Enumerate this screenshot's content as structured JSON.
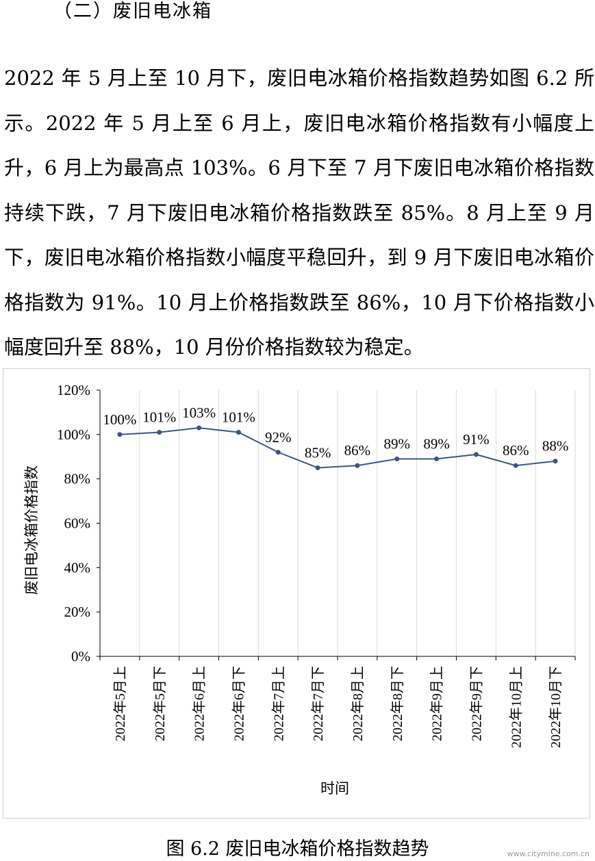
{
  "section_heading": "（二）废旧电冰箱",
  "paragraph": "2022 年 5 月上至 10 月下，废旧电冰箱价格指数趋势如图 6.2 所示。2022 年 5 月上至 6 月上，废旧电冰箱价格指数有小幅度上升，6 月上为最高点 103%。6 月下至 7 月下废旧电冰箱价格指数持续下跌，7 月下废旧电冰箱价格指数跌至 85%。8 月上至 9 月下，废旧电冰箱价格指数小幅度平稳回升，到 9 月下废旧电冰箱价格指数为 91%。10 月上价格指数跌至 86%，10 月下价格指数小幅度回升至 88%，10 月份价格指数较为稳定。",
  "caption": "图 6.2  废旧电冰箱价格指数趋势",
  "watermark": "www.citymine.com.cn",
  "chart_data": {
    "type": "line",
    "categories": [
      "2022年5月上",
      "2022年5月下",
      "2022年6月上",
      "2022年6月下",
      "2022年7月上",
      "2022年7月下",
      "2022年8月上",
      "2022年8月下",
      "2022年9月上",
      "2022年9月下",
      "2022年10月上",
      "2022年10月下"
    ],
    "values": [
      100,
      101,
      103,
      101,
      92,
      85,
      86,
      89,
      89,
      91,
      86,
      88
    ],
    "data_labels": [
      "100%",
      "101%",
      "103%",
      "101%",
      "92%",
      "85%",
      "86%",
      "89%",
      "89%",
      "91%",
      "86%",
      "88%"
    ],
    "xlabel": "时间",
    "ylabel": "废旧电冰箱价格指数",
    "ylim": [
      0,
      120
    ],
    "yticks": [
      0,
      20,
      40,
      60,
      80,
      100,
      120
    ],
    "ytick_labels": [
      "0%",
      "20%",
      "40%",
      "60%",
      "80%",
      "100%",
      "120%"
    ],
    "grid": "vertical",
    "line_color": "#3b5587",
    "grid_color": "#d9d9d9"
  }
}
